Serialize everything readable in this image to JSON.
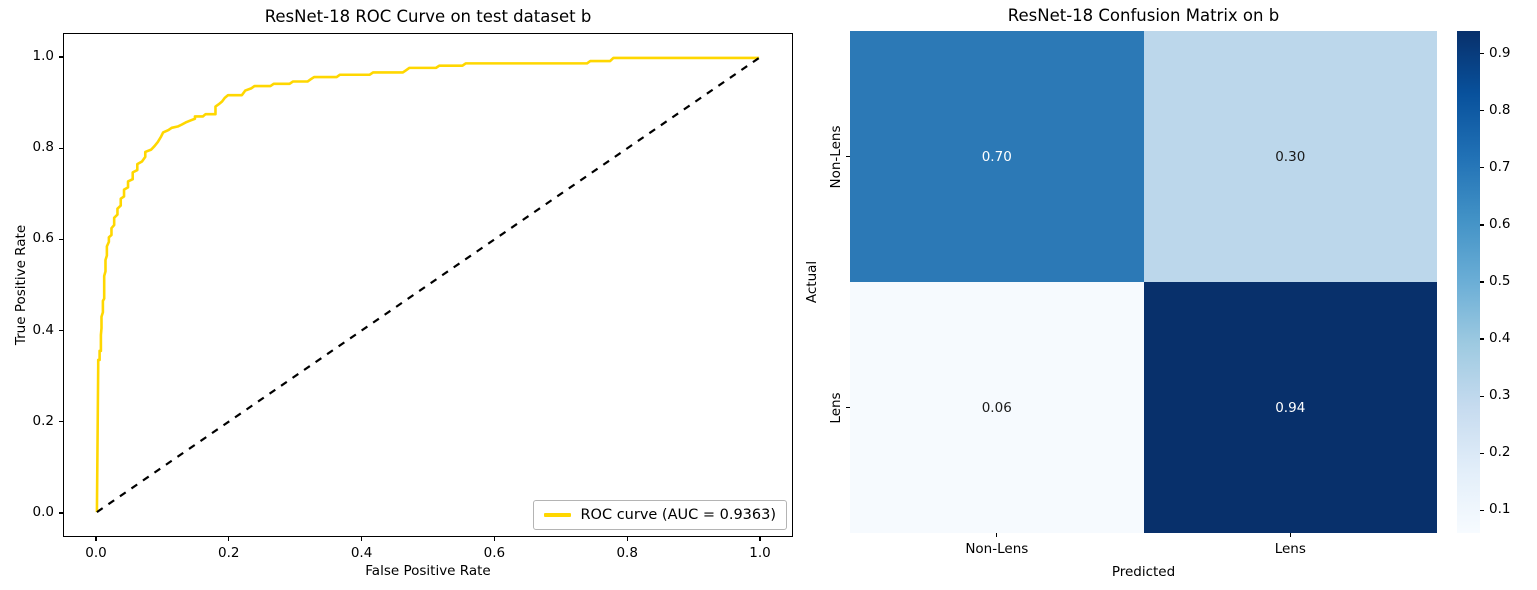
{
  "figure": {
    "background": "#ffffff"
  },
  "chart_data": [
    {
      "type": "line",
      "title": "ResNet-18 ROC Curve on test dataset b",
      "xlabel": "False Positive Rate",
      "ylabel": "True Positive Rate",
      "xticks": [
        "0.0",
        "0.2",
        "0.4",
        "0.6",
        "0.8",
        "1.0"
      ],
      "yticks": [
        "0.0",
        "0.2",
        "0.4",
        "0.6",
        "0.8",
        "1.0"
      ],
      "xlim": [
        -0.05,
        1.05
      ],
      "ylim": [
        -0.05,
        1.05
      ],
      "grid": false,
      "auc": 0.9363,
      "legend": {
        "label": "ROC curve (AUC = 0.9363)",
        "position": "lower right",
        "line_color": "#ffd700"
      },
      "series": [
        {
          "name": "roc-curve",
          "color": "#ffd700",
          "style": "solid",
          "points": [
            [
              0.0,
              0.0
            ],
            [
              0.002,
              0.32
            ],
            [
              0.002,
              0.335
            ],
            [
              0.004,
              0.335
            ],
            [
              0.004,
              0.355
            ],
            [
              0.006,
              0.355
            ],
            [
              0.006,
              0.39
            ],
            [
              0.007,
              0.405
            ],
            [
              0.007,
              0.43
            ],
            [
              0.009,
              0.44
            ],
            [
              0.009,
              0.465
            ],
            [
              0.011,
              0.47
            ],
            [
              0.011,
              0.52
            ],
            [
              0.013,
              0.53
            ],
            [
              0.013,
              0.555
            ],
            [
              0.015,
              0.565
            ],
            [
              0.015,
              0.585
            ],
            [
              0.018,
              0.595
            ],
            [
              0.018,
              0.605
            ],
            [
              0.022,
              0.61
            ],
            [
              0.022,
              0.625
            ],
            [
              0.026,
              0.632
            ],
            [
              0.026,
              0.648
            ],
            [
              0.031,
              0.655
            ],
            [
              0.031,
              0.668
            ],
            [
              0.036,
              0.675
            ],
            [
              0.036,
              0.69
            ],
            [
              0.041,
              0.695
            ],
            [
              0.041,
              0.71
            ],
            [
              0.047,
              0.715
            ],
            [
              0.047,
              0.728
            ],
            [
              0.054,
              0.733
            ],
            [
              0.054,
              0.748
            ],
            [
              0.061,
              0.753
            ],
            [
              0.061,
              0.766
            ],
            [
              0.068,
              0.772
            ],
            [
              0.073,
              0.782
            ],
            [
              0.073,
              0.793
            ],
            [
              0.082,
              0.798
            ],
            [
              0.087,
              0.806
            ],
            [
              0.092,
              0.815
            ],
            [
              0.097,
              0.827
            ],
            [
              0.1,
              0.836
            ],
            [
              0.108,
              0.841
            ],
            [
              0.113,
              0.846
            ],
            [
              0.122,
              0.849
            ],
            [
              0.128,
              0.853
            ],
            [
              0.134,
              0.858
            ],
            [
              0.141,
              0.862
            ],
            [
              0.148,
              0.866
            ],
            [
              0.148,
              0.871
            ],
            [
              0.16,
              0.871
            ],
            [
              0.164,
              0.876
            ],
            [
              0.179,
              0.876
            ],
            [
              0.179,
              0.893
            ],
            [
              0.184,
              0.898
            ],
            [
              0.189,
              0.904
            ],
            [
              0.193,
              0.912
            ],
            [
              0.198,
              0.918
            ],
            [
              0.219,
              0.918
            ],
            [
              0.224,
              0.928
            ],
            [
              0.233,
              0.933
            ],
            [
              0.238,
              0.938
            ],
            [
              0.262,
              0.938
            ],
            [
              0.267,
              0.943
            ],
            [
              0.291,
              0.943
            ],
            [
              0.296,
              0.948
            ],
            [
              0.318,
              0.948
            ],
            [
              0.323,
              0.953
            ],
            [
              0.328,
              0.958
            ],
            [
              0.362,
              0.958
            ],
            [
              0.367,
              0.963
            ],
            [
              0.412,
              0.963
            ],
            [
              0.417,
              0.968
            ],
            [
              0.462,
              0.968
            ],
            [
              0.467,
              0.973
            ],
            [
              0.472,
              0.978
            ],
            [
              0.512,
              0.978
            ],
            [
              0.517,
              0.983
            ],
            [
              0.552,
              0.983
            ],
            [
              0.557,
              0.988
            ],
            [
              0.74,
              0.988
            ],
            [
              0.745,
              0.993
            ],
            [
              0.775,
              0.993
            ],
            [
              0.78,
              1.0
            ],
            [
              1.0,
              1.0
            ]
          ]
        },
        {
          "name": "chance-diagonal",
          "color": "#000000",
          "style": "dashed",
          "points": [
            [
              0,
              0
            ],
            [
              1,
              1
            ]
          ]
        }
      ]
    },
    {
      "type": "heatmap",
      "title": "ResNet-18 Confusion Matrix on b",
      "xlabel": "Predicted",
      "ylabel": "Actual",
      "categories": [
        "Non-Lens",
        "Lens"
      ],
      "matrix": [
        [
          0.7,
          0.3
        ],
        [
          0.06,
          0.94
        ]
      ],
      "cell_labels": [
        [
          "0.70",
          "0.30"
        ],
        [
          "0.06",
          "0.94"
        ]
      ],
      "cell_colors": [
        [
          "#2c79b6",
          "#bcd7eb"
        ],
        [
          "#f6fafe",
          "#08306b"
        ]
      ],
      "cell_text_colors": [
        [
          "#ffffff",
          "#1a1a1a"
        ],
        [
          "#1a1a1a",
          "#ffffff"
        ]
      ],
      "colormap": "Blues",
      "colorbar": {
        "vmin": 0.06,
        "vmax": 0.94,
        "ticks": [
          "0.1",
          "0.2",
          "0.3",
          "0.4",
          "0.5",
          "0.6",
          "0.7",
          "0.8",
          "0.9"
        ],
        "gradient_bottom_to_top": [
          "#f7fbff",
          "#e2eef9",
          "#c6dbef",
          "#9ecae1",
          "#6baed6",
          "#4292c6",
          "#2171b5",
          "#08519c",
          "#08306b"
        ]
      }
    }
  ]
}
